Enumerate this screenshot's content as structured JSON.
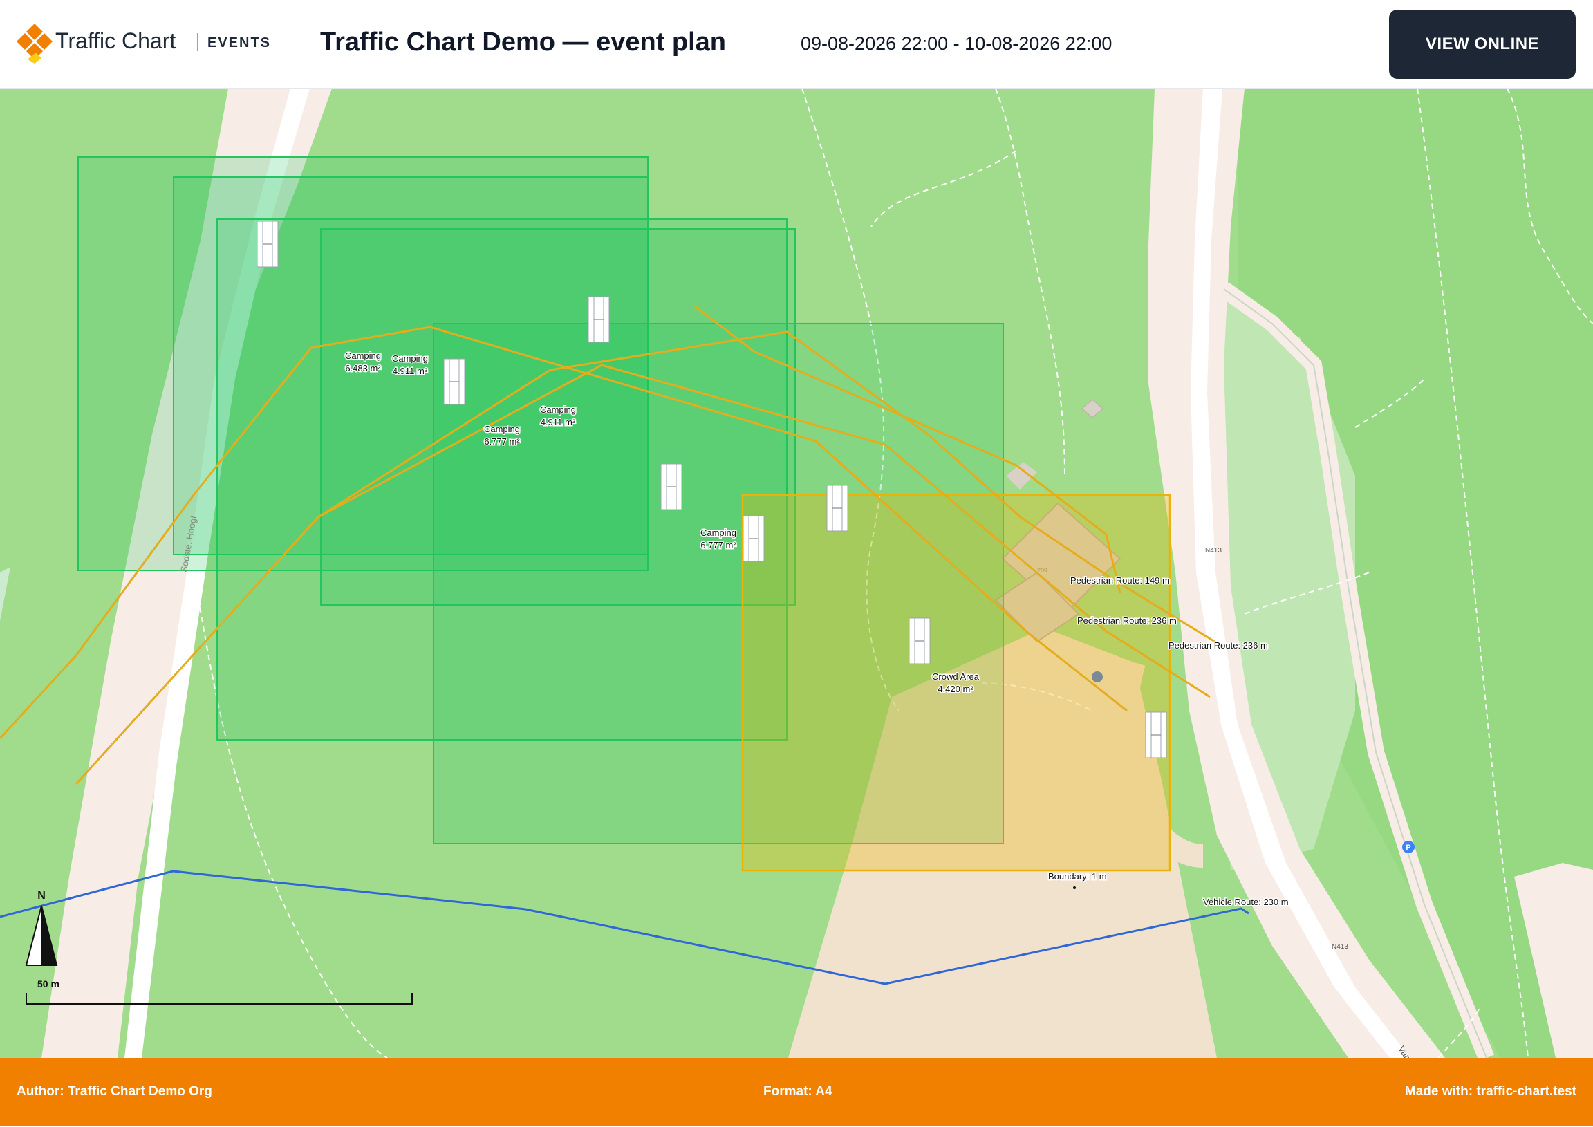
{
  "header": {
    "brand_name": "Traffic Chart",
    "brand_sub": "EVENTS",
    "title": "Traffic Chart Demo — event plan",
    "date_range": "09-08-2026 22:00 - 10-08-2026 22:00",
    "view_online_label": "VIEW ONLINE"
  },
  "map": {
    "road_labels": {
      "west_road": "Sodste. Hoogt",
      "n413_a": "N413",
      "n413_b": "N413",
      "van_road": "Van"
    },
    "building_number": "209",
    "parking_label": "P",
    "camping_labels": [
      {
        "name": "Camping",
        "area": "6.483 m²"
      },
      {
        "name": "Camping",
        "area": "4.911 m²"
      },
      {
        "name": "Camping",
        "area": "6.777 m²"
      },
      {
        "name": "Camping",
        "area": "4.911 m²"
      },
      {
        "name": "Camping",
        "area": "6.777 m²"
      }
    ],
    "crowd_area": {
      "name": "Crowd Area",
      "area": "4.420 m²"
    },
    "route_labels": {
      "ped_1": "Pedestrian Route: 149 m",
      "ped_2": "Pedestrian Route: 236 m",
      "ped_3": "Pedestrian Route: 236 m",
      "vehicle": "Vehicle Route: 230 m",
      "boundary": "Boundary: 1 m"
    },
    "north_label": "N",
    "scale_label": "50 m",
    "colors": {
      "camping": "#22c55e",
      "crowd": "#eab308",
      "pedestrian_route": "#e4ad1e",
      "vehicle_route": "#2f66d8",
      "grass": "#a1dc8c",
      "road": "#f8ece6"
    }
  },
  "footer": {
    "author": "Author: Traffic Chart Demo Org",
    "format": "Format: A4",
    "made_with": "Made with: traffic-chart.test"
  }
}
